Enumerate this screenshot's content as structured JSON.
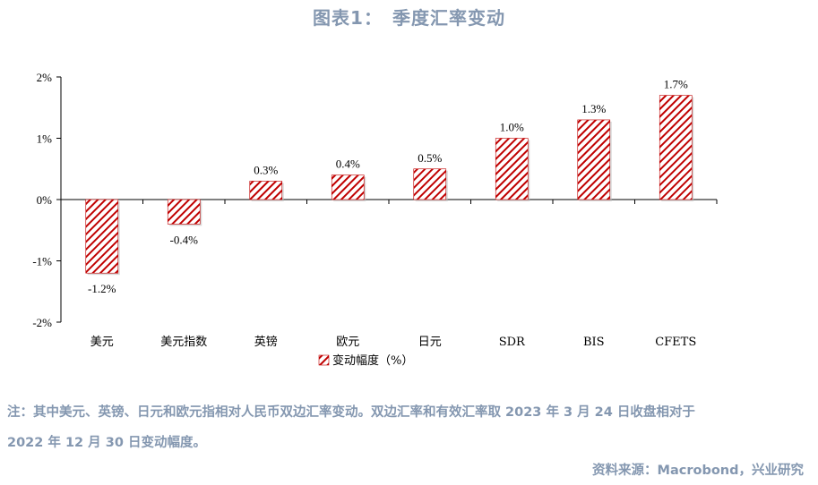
{
  "title": "图表1：　季度汇率变动",
  "note_line1": "注：其中美元、英镑、日元和欧元指相对人民币双边汇率变动。双边汇率和有效汇率取 2023 年 3 月 24 日收盘相对于",
  "note_line2": "2022 年 12 月 30 日变动幅度。",
  "source": "资料来源：Macrobond，兴业研究",
  "colors": {
    "bar_stripe": "#c00000",
    "title": "#8497b0"
  },
  "chart_data": {
    "type": "bar",
    "categories": [
      "美元",
      "美元指数",
      "英镑",
      "欧元",
      "日元",
      "SDR",
      "BIS",
      "CFETS"
    ],
    "series": [
      {
        "name": "变动幅度（%）",
        "values": [
          -1.2,
          -0.4,
          0.3,
          0.4,
          0.5,
          1.0,
          1.3,
          1.7
        ]
      }
    ],
    "data_labels": [
      "-1.2%",
      "-0.4%",
      "0.3%",
      "0.4%",
      "0.5%",
      "1.0%",
      "1.3%",
      "1.7%"
    ],
    "y_ticks": [
      "2%",
      "1%",
      "0%",
      "-1%",
      "-2%"
    ],
    "ylim": [
      -2,
      2
    ],
    "grid": false,
    "legend": "bottom"
  }
}
